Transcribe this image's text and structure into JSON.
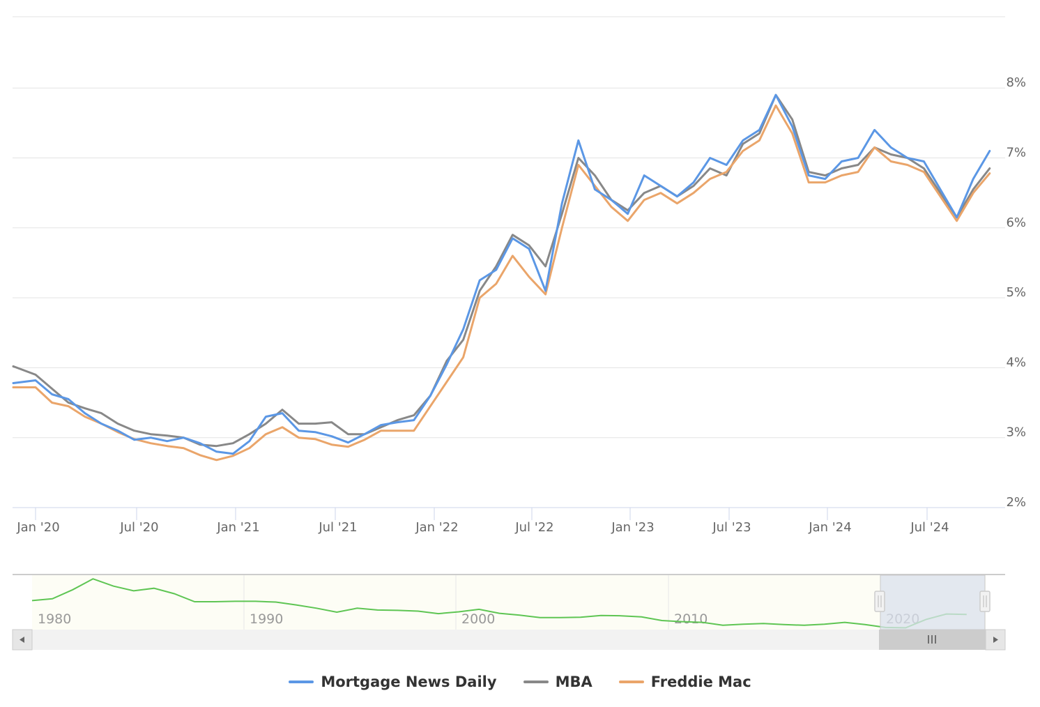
{
  "colors": {
    "mnd": "#5b97e5",
    "mba": "#888888",
    "freddie": "#eaa56a",
    "navigator_line": "#5ec553",
    "navigator_fill": "#fdfdf5",
    "navigator_mask": "#d9e0ec",
    "gridline": "#e3e3e3",
    "axis": "#ccd6eb",
    "scrollbar_track": "#f2f2f2",
    "scrollbar_thumb": "#cccccc",
    "scrollbar_button": "#e6e6e6"
  },
  "legend": {
    "items": [
      {
        "label": "Mortgage News Daily",
        "color": "#5b97e5"
      },
      {
        "label": "MBA",
        "color": "#888888"
      },
      {
        "label": "Freddie Mac",
        "color": "#eaa56a"
      }
    ]
  },
  "navigator": {
    "labels": [
      "1980",
      "1990",
      "2000",
      "2010",
      "2020"
    ],
    "selected_range": [
      "Dec 2019",
      "Nov 2024"
    ]
  },
  "scrollbar": {
    "left_arrow": "◀",
    "right_arrow": "▶",
    "grip": "III"
  },
  "chart_data": {
    "type": "line",
    "title": "",
    "xlabel": "",
    "ylabel": "",
    "ylim": [
      2,
      9
    ],
    "y_ticks": [
      "2%",
      "3%",
      "4%",
      "5%",
      "6%",
      "7%",
      "8%"
    ],
    "y_tick_values": [
      2,
      3,
      4,
      5,
      6,
      7,
      8
    ],
    "y_axis_position": "right",
    "grid": true,
    "legend_position": "bottom",
    "x_ticks": [
      "Jan '20",
      "Jul '20",
      "Jan '21",
      "Jul '21",
      "Jan '22",
      "Jul '22",
      "Jan '23",
      "Jul '23",
      "Jan '24",
      "Jul '24"
    ],
    "x": [
      "2019-12",
      "2020-01",
      "2020-02",
      "2020-03",
      "2020-04",
      "2020-05",
      "2020-06",
      "2020-07",
      "2020-08",
      "2020-09",
      "2020-10",
      "2020-11",
      "2020-12",
      "2021-01",
      "2021-02",
      "2021-03",
      "2021-04",
      "2021-05",
      "2021-06",
      "2021-07",
      "2021-08",
      "2021-09",
      "2021-10",
      "2021-11",
      "2021-12",
      "2022-01",
      "2022-02",
      "2022-03",
      "2022-04",
      "2022-05",
      "2022-06",
      "2022-07",
      "2022-08",
      "2022-09",
      "2022-10",
      "2022-11",
      "2022-12",
      "2023-01",
      "2023-02",
      "2023-03",
      "2023-04",
      "2023-05",
      "2023-06",
      "2023-07",
      "2023-08",
      "2023-09",
      "2023-10",
      "2023-11",
      "2023-12",
      "2024-01",
      "2024-02",
      "2024-03",
      "2024-04",
      "2024-05",
      "2024-06",
      "2024-07",
      "2024-08",
      "2024-09",
      "2024-10",
      "2024-11"
    ],
    "series": [
      {
        "name": "Mortgage News Daily",
        "color": "#5b97e5",
        "values": [
          3.78,
          3.82,
          3.62,
          3.55,
          3.35,
          3.2,
          3.1,
          2.97,
          3.0,
          2.95,
          3.0,
          2.92,
          2.8,
          2.77,
          2.95,
          3.3,
          3.35,
          3.1,
          3.08,
          3.02,
          2.93,
          3.05,
          3.18,
          3.22,
          3.25,
          3.6,
          4.05,
          4.55,
          5.25,
          5.4,
          5.85,
          5.7,
          5.1,
          6.35,
          7.25,
          6.55,
          6.4,
          6.2,
          6.75,
          6.6,
          6.45,
          6.65,
          7.0,
          6.9,
          7.25,
          7.4,
          7.9,
          7.45,
          6.75,
          6.7,
          6.95,
          7.0,
          7.4,
          7.15,
          7.0,
          6.95,
          6.55,
          6.15,
          6.7,
          7.1
        ]
      },
      {
        "name": "MBA",
        "color": "#888888",
        "values": [
          4.02,
          3.9,
          3.7,
          3.5,
          3.42,
          3.35,
          3.2,
          3.1,
          3.05,
          3.03,
          3.0,
          2.9,
          2.88,
          2.92,
          3.05,
          3.2,
          3.4,
          3.2,
          3.2,
          3.22,
          3.05,
          3.05,
          3.15,
          3.25,
          3.32,
          3.6,
          4.1,
          4.4,
          5.1,
          5.45,
          5.9,
          5.75,
          5.45,
          6.2,
          7.0,
          6.75,
          6.4,
          6.25,
          6.5,
          6.6,
          6.45,
          6.6,
          6.85,
          6.75,
          7.2,
          7.35,
          7.9,
          7.55,
          6.8,
          6.75,
          6.85,
          6.9,
          7.15,
          7.05,
          7.0,
          6.85,
          6.5,
          6.15,
          6.55,
          6.85
        ]
      },
      {
        "name": "Freddie Mac",
        "color": "#eaa56a",
        "values": [
          3.72,
          3.72,
          3.5,
          3.45,
          3.3,
          3.2,
          3.08,
          2.98,
          2.92,
          2.88,
          2.85,
          2.75,
          2.68,
          2.74,
          2.85,
          3.05,
          3.15,
          3.0,
          2.98,
          2.9,
          2.87,
          2.97,
          3.1,
          3.1,
          3.1,
          3.45,
          3.8,
          4.15,
          5.0,
          5.2,
          5.6,
          5.3,
          5.05,
          6.0,
          6.9,
          6.6,
          6.3,
          6.1,
          6.4,
          6.5,
          6.35,
          6.5,
          6.7,
          6.8,
          7.1,
          7.25,
          7.75,
          7.35,
          6.65,
          6.65,
          6.75,
          6.8,
          7.15,
          6.95,
          6.9,
          6.8,
          6.45,
          6.1,
          6.5,
          6.78
        ]
      }
    ],
    "navigator": {
      "type": "area",
      "x": [
        1978,
        1979,
        1980,
        1981,
        1982,
        1983,
        1984,
        1985,
        1986,
        1987,
        1988,
        1989,
        1990,
        1991,
        1992,
        1993,
        1994,
        1995,
        1996,
        1997,
        1998,
        1999,
        2000,
        2001,
        2002,
        2003,
        2004,
        2005,
        2006,
        2007,
        2008,
        2009,
        2010,
        2011,
        2012,
        2013,
        2014,
        2015,
        2016,
        2017,
        2018,
        2019,
        2020,
        2021,
        2022,
        2023,
        2024
      ],
      "values": [
        10.5,
        11.0,
        13.5,
        16.5,
        14.5,
        13.2,
        13.9,
        12.4,
        10.2,
        10.2,
        10.3,
        10.3,
        10.1,
        9.3,
        8.4,
        7.3,
        8.4,
        7.9,
        7.8,
        7.6,
        6.9,
        7.4,
        8.1,
        7.0,
        6.5,
        5.8,
        5.8,
        5.9,
        6.4,
        6.3,
        6.0,
        5.0,
        4.7,
        4.5,
        3.7,
        4.0,
        4.2,
        3.9,
        3.7,
        4.0,
        4.5,
        3.9,
        3.1,
        3.0,
        5.3,
        6.8,
        6.7
      ]
    }
  }
}
